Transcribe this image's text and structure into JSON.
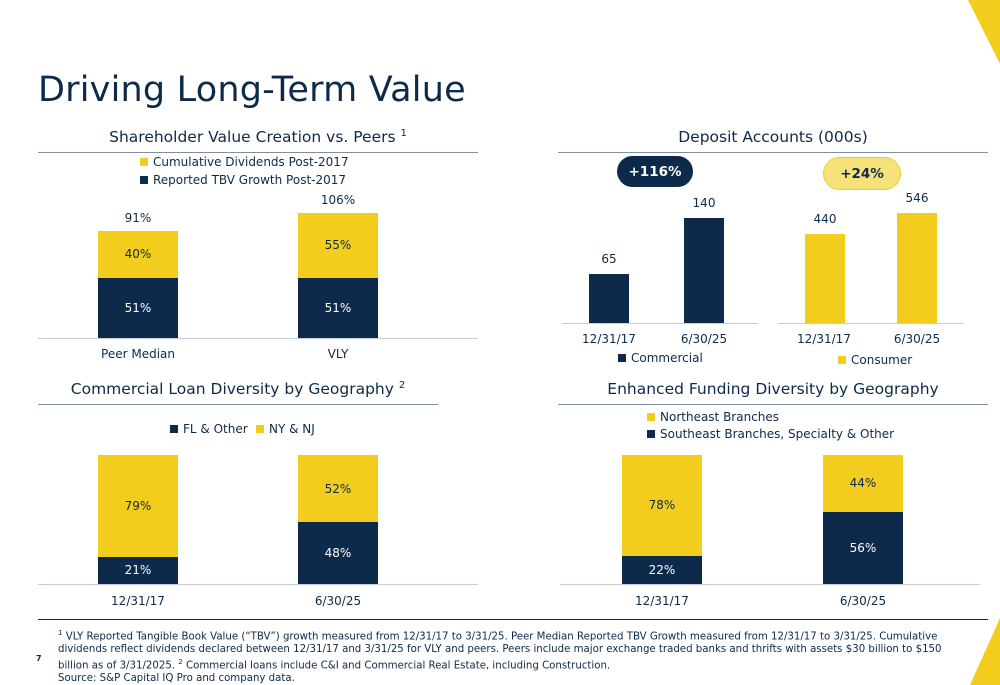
{
  "page": {
    "title": "Driving Long-Term Value",
    "page_number": "7",
    "footnotes": {
      "n1_mark": "1",
      "n1_text": "VLY Reported Tangible Book Value (“TBV”) growth measured from 12/31/17 to 3/31/25.  Peer Median Reported TBV Growth measured from 12/31/17 to 3/31/25.  Cumulative dividends reflect dividends declared between 12/31/17 and 3/31/25 for VLY and peers.  Peers include major exchange traded banks and thrifts with assets $30 billion to $150 billion as of 3/31/2025.",
      "n2_mark": "2",
      "n2_text": "Commercial loans include C&I and Commercial Real Estate, including Construction.",
      "source": "Source: S&P Capital IQ Pro and company data."
    }
  },
  "colors": {
    "navy": "#0d2a4a",
    "yellow": "#f2cd1d",
    "badge_yellow": "#f6e27a",
    "rule": "#7f8ea3"
  },
  "chart_data": [
    {
      "id": "shareholder",
      "type": "bar",
      "stacked": true,
      "title": "Shareholder Value Creation vs. Peers",
      "title_footnote": "1",
      "categories": [
        "Peer Median",
        "VLY"
      ],
      "series": [
        {
          "name": "Reported TBV Growth Post-2017",
          "values": [
            51,
            51
          ],
          "labels": [
            "51%",
            "51%"
          ],
          "color": "#0d2a4a"
        },
        {
          "name": "Cumulative Dividends Post-2017",
          "values": [
            40,
            55
          ],
          "labels": [
            "40%",
            "55%"
          ],
          "color": "#f2cd1d"
        }
      ],
      "totals": [
        91,
        106
      ],
      "total_labels": [
        "91%",
        "106%"
      ],
      "legend": [
        "Cumulative Dividends Post-2017",
        "Reported TBV Growth Post-2017"
      ],
      "legend_placement": "top",
      "ylim": [
        0,
        106
      ]
    },
    {
      "id": "deposit",
      "type": "bar",
      "title": "Deposit Accounts (000s)",
      "ylim": [
        0,
        546
      ],
      "groups": [
        {
          "name": "Commercial",
          "categories": [
            "12/31/17",
            "6/30/25"
          ],
          "values": [
            65,
            140
          ],
          "value_labels": [
            "65",
            "140"
          ],
          "color": "#0d2a4a",
          "badge": "+116%"
        },
        {
          "name": "Consumer",
          "categories": [
            "12/31/17",
            "6/30/25"
          ],
          "values": [
            440,
            546
          ],
          "value_labels": [
            "440",
            "546"
          ],
          "color": "#f2cd1d",
          "badge": "+24%"
        }
      ]
    },
    {
      "id": "commercial_loan",
      "type": "bar",
      "stacked": true,
      "title": "Commercial Loan Diversity by Geography",
      "title_footnote": "2",
      "categories": [
        "12/31/17",
        "6/30/25"
      ],
      "series": [
        {
          "name": "FL & Other",
          "values": [
            21,
            48
          ],
          "labels": [
            "21%",
            "48%"
          ],
          "color": "#0d2a4a"
        },
        {
          "name": "NY & NJ",
          "values": [
            79,
            52
          ],
          "labels": [
            "79%",
            "52%"
          ],
          "color": "#f2cd1d"
        }
      ],
      "legend": [
        "FL & Other",
        "NY & NJ"
      ],
      "legend_placement": "top",
      "ylim": [
        0,
        100
      ]
    },
    {
      "id": "funding",
      "type": "bar",
      "stacked": true,
      "title": "Enhanced Funding Diversity by Geography",
      "categories": [
        "12/31/17",
        "6/30/25"
      ],
      "series": [
        {
          "name": "Southeast Branches, Specialty & Other",
          "values": [
            22,
            56
          ],
          "labels": [
            "22%",
            "56%"
          ],
          "color": "#0d2a4a"
        },
        {
          "name": "Northeast Branches",
          "values": [
            78,
            44
          ],
          "labels": [
            "78%",
            "44%"
          ],
          "color": "#f2cd1d"
        }
      ],
      "legend": [
        "Northeast Branches",
        "Southeast Branches, Specialty & Other"
      ],
      "legend_placement": "top",
      "ylim": [
        0,
        100
      ]
    }
  ]
}
